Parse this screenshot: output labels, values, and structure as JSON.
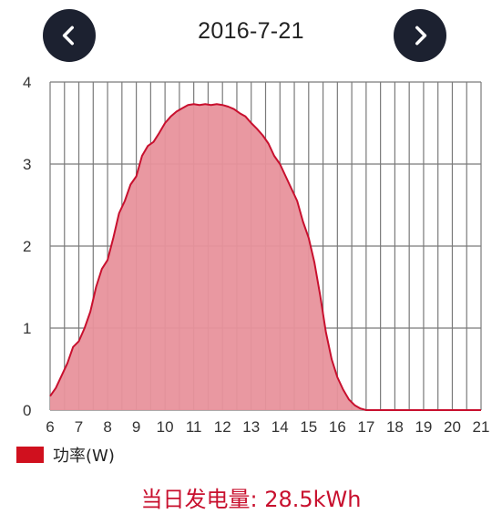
{
  "header": {
    "date": "2016-7-21",
    "prev_icon": "chevron-left-icon",
    "next_icon": "chevron-right-icon"
  },
  "colors": {
    "nav_bg": "#1c2130",
    "fill": "#e8929c",
    "line": "#c8102e",
    "grid": "#7a7a7a",
    "legend": "#d0101e",
    "summary": "#c8102e"
  },
  "legend": {
    "label": "功率(W)"
  },
  "summary": {
    "label": "当日发电量: 28.5kWh"
  },
  "chart_data": {
    "type": "area",
    "xlim": [
      6,
      21
    ],
    "ylim": [
      0,
      4
    ],
    "x_ticks": [
      6,
      7,
      8,
      9,
      10,
      11,
      12,
      13,
      14,
      15,
      16,
      17,
      18,
      19,
      20,
      21
    ],
    "y_ticks": [
      0,
      1,
      2,
      3,
      4
    ],
    "grid": true,
    "series": [
      {
        "name": "功率(W)",
        "points": [
          [
            6.0,
            0.17
          ],
          [
            6.2,
            0.27
          ],
          [
            6.4,
            0.42
          ],
          [
            6.6,
            0.57
          ],
          [
            6.8,
            0.77
          ],
          [
            7.0,
            0.84
          ],
          [
            7.2,
            1.0
          ],
          [
            7.4,
            1.2
          ],
          [
            7.6,
            1.5
          ],
          [
            7.8,
            1.72
          ],
          [
            8.0,
            1.83
          ],
          [
            8.2,
            2.1
          ],
          [
            8.4,
            2.4
          ],
          [
            8.6,
            2.55
          ],
          [
            8.8,
            2.75
          ],
          [
            9.0,
            2.85
          ],
          [
            9.2,
            3.1
          ],
          [
            9.4,
            3.22
          ],
          [
            9.6,
            3.27
          ],
          [
            9.8,
            3.38
          ],
          [
            10.0,
            3.5
          ],
          [
            10.2,
            3.58
          ],
          [
            10.4,
            3.64
          ],
          [
            10.6,
            3.68
          ],
          [
            10.8,
            3.72
          ],
          [
            11.0,
            3.73
          ],
          [
            11.2,
            3.72
          ],
          [
            11.4,
            3.73
          ],
          [
            11.6,
            3.72
          ],
          [
            11.8,
            3.73
          ],
          [
            12.0,
            3.72
          ],
          [
            12.2,
            3.7
          ],
          [
            12.4,
            3.67
          ],
          [
            12.6,
            3.62
          ],
          [
            12.8,
            3.58
          ],
          [
            13.0,
            3.5
          ],
          [
            13.2,
            3.43
          ],
          [
            13.4,
            3.35
          ],
          [
            13.6,
            3.25
          ],
          [
            13.8,
            3.1
          ],
          [
            14.0,
            3.0
          ],
          [
            14.2,
            2.85
          ],
          [
            14.4,
            2.7
          ],
          [
            14.6,
            2.55
          ],
          [
            14.8,
            2.3
          ],
          [
            15.0,
            2.1
          ],
          [
            15.2,
            1.8
          ],
          [
            15.4,
            1.4
          ],
          [
            15.6,
            0.95
          ],
          [
            15.8,
            0.62
          ],
          [
            16.0,
            0.4
          ],
          [
            16.2,
            0.25
          ],
          [
            16.4,
            0.13
          ],
          [
            16.6,
            0.06
          ],
          [
            16.8,
            0.02
          ],
          [
            17.0,
            0.0
          ],
          [
            18.0,
            0.0
          ],
          [
            19.0,
            0.0
          ],
          [
            20.0,
            0.0
          ],
          [
            21.0,
            0.0
          ]
        ]
      }
    ]
  }
}
